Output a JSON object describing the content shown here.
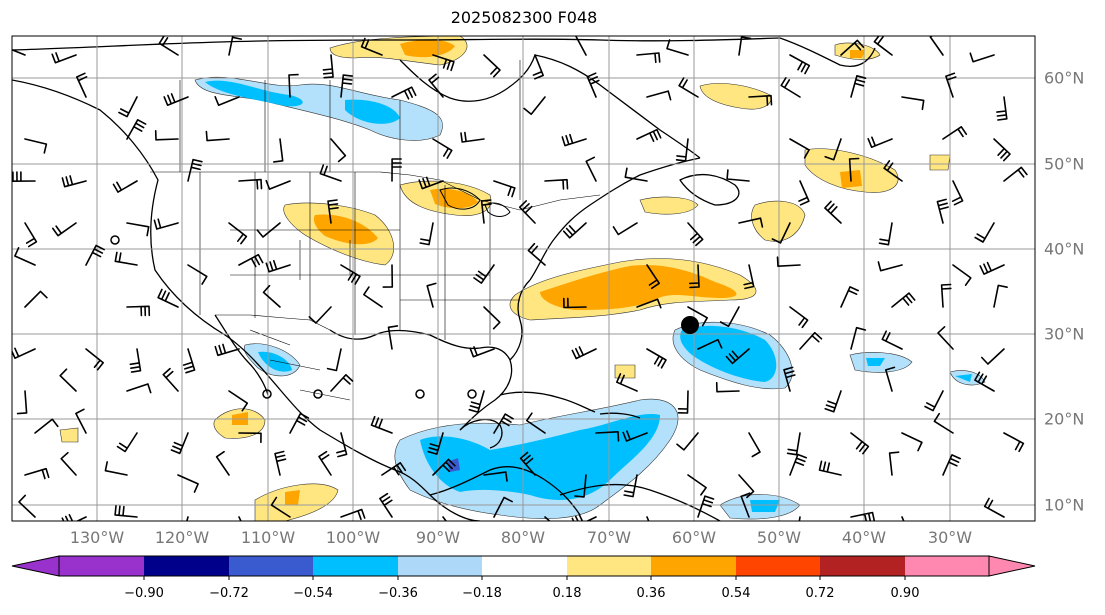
{
  "title": "2025082300 F048",
  "lon_labels": [
    "130°W",
    "120°W",
    "110°W",
    "100°W",
    "90°W",
    "80°W",
    "70°W",
    "60°W",
    "50°W",
    "40°W",
    "30°W"
  ],
  "lat_labels": [
    "60°N",
    "50°N",
    "40°N",
    "30°N",
    "20°N",
    "10°N"
  ],
  "colorbar": {
    "ticks": [
      "−0.90",
      "−0.72",
      "−0.54",
      "−0.36",
      "−0.18",
      "0.18",
      "0.36",
      "0.54",
      "0.72",
      "0.90"
    ],
    "colors": [
      "#9932cc",
      "#00008b",
      "#3a5bcf",
      "#00bfff",
      "#add8f7",
      "#ffffff",
      "#ffe680",
      "#ffa500",
      "#ff4500",
      "#b22222",
      "#ff88b0"
    ]
  },
  "colors": {
    "grid": "#999999",
    "coast": "#000000",
    "light_blue": "#b3e0fa",
    "blue": "#00bfff",
    "yellow": "#ffe680",
    "orange": "#ffa500"
  },
  "marker": {
    "lat": 31,
    "lon": -60
  }
}
